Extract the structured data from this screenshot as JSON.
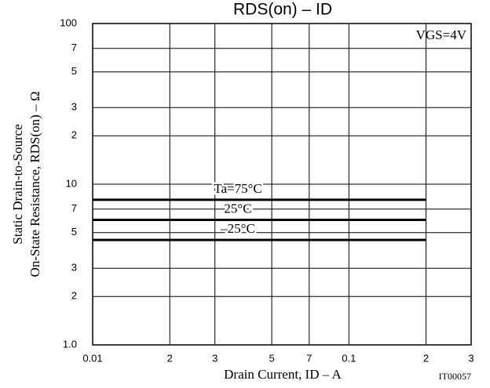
{
  "chart_data": {
    "type": "line",
    "title": "RDS(on)  –  ID",
    "xlabel": "Drain Current, ID  –  A",
    "ylabel": [
      "Static Drain-to-Source",
      "On-State Resistance, RDS(on)  –  Ω"
    ],
    "annotations": [
      "VGS=4V",
      "IT00057"
    ],
    "x": [
      0.01,
      0.2
    ],
    "series": [
      {
        "name": "Ta=75°C",
        "color": "#000000",
        "values": [
          8,
          8
        ]
      },
      {
        "name": "25°C",
        "color": "#000000",
        "values": [
          6,
          6
        ]
      },
      {
        "name": "–25°C",
        "color": "#000000",
        "values": [
          4.5,
          4.5
        ]
      }
    ],
    "xlim": [
      0.01,
      0.3
    ],
    "ylim": [
      1,
      100
    ],
    "xscale": "log",
    "yscale": "log",
    "grid": true,
    "xticks": [
      {
        "value": 0.01,
        "label": "0.01"
      },
      {
        "value": 0.02,
        "label": "2"
      },
      {
        "value": 0.03,
        "label": "3"
      },
      {
        "value": 0.05,
        "label": "5"
      },
      {
        "value": 0.07,
        "label": "7"
      },
      0.1,
      {
        "value": 0.2,
        "label": "2"
      },
      {
        "value": 0.3,
        "label": "3"
      }
    ],
    "yticks": [
      {
        "value": 1,
        "label": "1.0"
      },
      2,
      3,
      5,
      7,
      10,
      {
        "value": 20,
        "label": "2"
      },
      {
        "value": 30,
        "label": "3"
      },
      {
        "value": 50,
        "label": "5"
      },
      {
        "value": 70,
        "label": "7"
      },
      100
    ]
  }
}
